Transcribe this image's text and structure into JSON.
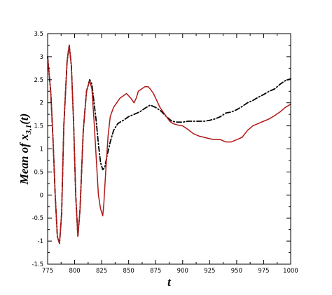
{
  "chart_data": {
    "type": "line",
    "xlabel": "t",
    "ylabel": {
      "prefix": "Mean of ",
      "var": "x",
      "sub": "3,1",
      "suffix": "(t)"
    },
    "xlim": [
      775,
      1000
    ],
    "ylim": [
      -1.5,
      3.5
    ],
    "xticks": [
      775,
      800,
      825,
      850,
      875,
      900,
      925,
      950,
      975,
      1000
    ],
    "yticks": [
      -1.5,
      -1,
      -0.5,
      0,
      0.5,
      1,
      1.5,
      2,
      2.5,
      3,
      3.5
    ],
    "ytick_labels": [
      "-1.5",
      "-1",
      "-0.5",
      "0",
      "0.5",
      "1",
      "1.5",
      "2",
      "2.5",
      "3",
      "3.5"
    ],
    "grid": false,
    "legend": "none",
    "series": [
      {
        "color": "#000000",
        "style": "dash-dot",
        "x": [
          775,
          778,
          780,
          782,
          784,
          786,
          788,
          790,
          793,
          795,
          797,
          799,
          801,
          803,
          805,
          808,
          811,
          814,
          816,
          818,
          820,
          822,
          824,
          826,
          828,
          830,
          833,
          836,
          840,
          845,
          850,
          855,
          860,
          865,
          870,
          875,
          880,
          885,
          890,
          895,
          900,
          905,
          910,
          915,
          920,
          925,
          930,
          935,
          940,
          945,
          950,
          955,
          960,
          965,
          970,
          975,
          980,
          985,
          990,
          995,
          1000
        ],
        "y": [
          3.0,
          2.2,
          1.2,
          0.0,
          -0.9,
          -1.05,
          -0.4,
          1.5,
          2.9,
          3.25,
          2.8,
          1.6,
          0.0,
          -0.9,
          -0.3,
          1.4,
          2.25,
          2.5,
          2.4,
          2.0,
          1.6,
          1.1,
          0.7,
          0.55,
          0.6,
          0.85,
          1.15,
          1.4,
          1.55,
          1.62,
          1.7,
          1.75,
          1.8,
          1.88,
          1.95,
          1.9,
          1.82,
          1.7,
          1.6,
          1.58,
          1.58,
          1.6,
          1.6,
          1.6,
          1.6,
          1.62,
          1.65,
          1.7,
          1.78,
          1.8,
          1.85,
          1.92,
          2.0,
          2.05,
          2.12,
          2.18,
          2.25,
          2.3,
          2.4,
          2.48,
          2.52
        ]
      },
      {
        "color": "#b01818",
        "style": "solid",
        "x": [
          775,
          778,
          780,
          782,
          784,
          786,
          788,
          790,
          793,
          795,
          797,
          799,
          801,
          803,
          805,
          808,
          811,
          814,
          816,
          818,
          820,
          822,
          824,
          826,
          827,
          829,
          831,
          833,
          836,
          839,
          842,
          845,
          848,
          852,
          855,
          857,
          859,
          862,
          865,
          868,
          870,
          873,
          876,
          879,
          882,
          885,
          888,
          891,
          895,
          900,
          905,
          910,
          915,
          920,
          925,
          930,
          935,
          940,
          945,
          950,
          955,
          960,
          965,
          970,
          975,
          980,
          985,
          990,
          995,
          1000
        ],
        "y": [
          3.0,
          2.2,
          1.2,
          0.0,
          -0.9,
          -1.05,
          -0.4,
          1.5,
          2.9,
          3.25,
          2.8,
          1.6,
          0.0,
          -0.9,
          -0.3,
          1.4,
          2.25,
          2.48,
          2.3,
          1.6,
          0.8,
          0.0,
          -0.3,
          -0.45,
          -0.2,
          0.6,
          1.3,
          1.7,
          1.9,
          2.0,
          2.1,
          2.15,
          2.2,
          2.1,
          2.0,
          2.1,
          2.25,
          2.3,
          2.35,
          2.35,
          2.3,
          2.2,
          2.05,
          1.9,
          1.8,
          1.7,
          1.6,
          1.55,
          1.52,
          1.5,
          1.42,
          1.33,
          1.28,
          1.25,
          1.22,
          1.2,
          1.2,
          1.15,
          1.15,
          1.2,
          1.25,
          1.4,
          1.5,
          1.55,
          1.6,
          1.65,
          1.72,
          1.8,
          1.9,
          1.97
        ]
      }
    ]
  }
}
